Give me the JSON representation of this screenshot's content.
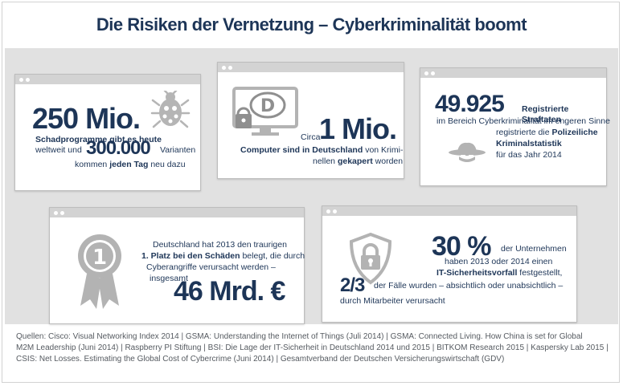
{
  "title": "Die Risiken der Vernetzung – Cyberkriminalität boomt",
  "card1": {
    "big_number": "250 Mio.",
    "line1": "Schadprogramme gibt es heute",
    "line2_pre": "weltweit und",
    "mid_number": "300.000",
    "line2_post": "Varianten",
    "line3_pre": "kommen",
    "line3_bold": "jeden Tag",
    "line3_post": "neu dazu",
    "icon": "bug-icon"
  },
  "card2": {
    "pre": "Circa",
    "big_number": "1 Mio.",
    "line1_bold": "Computer sind in Deutschland",
    "line1_post": "von Krimi-",
    "line2_pre": "nellen",
    "line2_bold": "gekapert",
    "line2_post": "worden",
    "icon": "hacked-monitor-icon",
    "icon_letter": "D"
  },
  "card3": {
    "big_number": "49.925",
    "line1": "Registrierte Straftaten",
    "line2": "im Bereich Cyberkriminalität im engeren Sinne",
    "line3_pre": "registrierte die",
    "line3_bold": "Polizeiliche",
    "line4": "Kriminalstatistik",
    "line5": "für das Jahr 2014",
    "icon": "hacker-hat-icon"
  },
  "card4": {
    "line1": "Deutschland hat 2013 den traurigen",
    "line2_bold": "1. Platz bei den Schäden",
    "line2_post": "belegt, die durch",
    "line3": "Cyberangriffe verursacht werden –",
    "line4": "insgesamt",
    "big_number": "46 Mrd. €",
    "icon": "rosette-icon",
    "icon_number": "1"
  },
  "card5": {
    "big_number": "30 %",
    "line1": "der Unternehmen",
    "line2": "haben 2013 oder 2014 einen",
    "line3_bold": "IT-Sicherheitsvorfall",
    "line3_post": "festgestellt,",
    "fraction": "2/3",
    "line4": "der Fälle wurden – absichtlich oder unabsichtlich –",
    "line5": "durch Mitarbeiter verursacht",
    "icon": "shield-lock-icon"
  },
  "sources": {
    "line1": "Quellen: Cisco: Visual Networking Index 2014 | GSMA: Understanding the Internet of Things (Juli 2014) | GSMA: Connected Living. How China is set for Global",
    "line2": "M2M Leadership (Juni 2014) | Raspberry PI Stiftung | BSI: Die Lage der IT-Sicherheit in Deutschland 2014 und 2015 | BITKOM Research 2015 | Kaspersky Lab 2015 |",
    "line3": "CSIS: Net Losses. Estimating the Global Cost of Cybercrime (Juni 2014) | Gesamtverband der Deutschen Versicherungswirtschaft (GDV)"
  },
  "colors": {
    "navy": "#1d3557",
    "icon_gray": "#b3b3b3",
    "panel": "#e1e1e1"
  }
}
